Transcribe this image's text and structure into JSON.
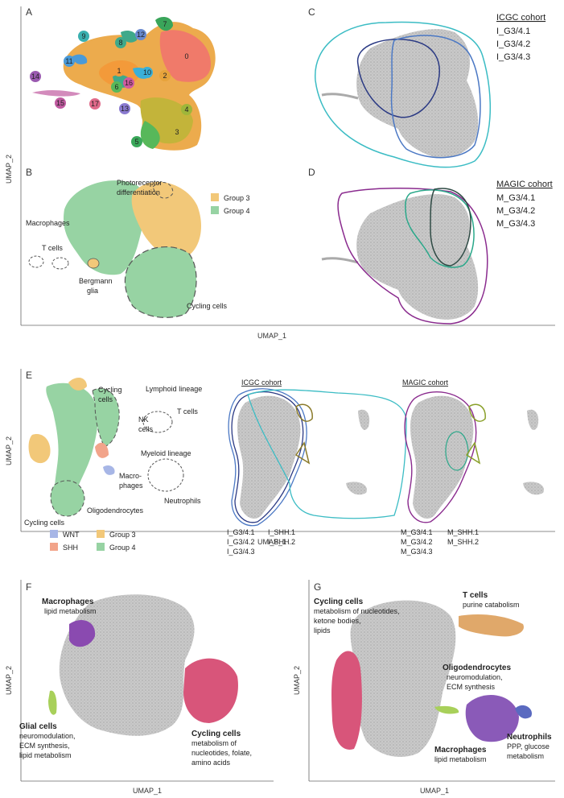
{
  "panel_labels": {
    "A": "A",
    "B": "B",
    "C": "C",
    "D": "D",
    "E": "E",
    "F": "F",
    "G": "G"
  },
  "axes": {
    "y": "UMAP_2",
    "x": "UMAP_1"
  },
  "panel_a": {
    "clusters": [
      "0",
      "1",
      "2",
      "3",
      "4",
      "5",
      "6",
      "7",
      "8",
      "9",
      "10",
      "11",
      "12",
      "13",
      "14",
      "15",
      "16",
      "17"
    ],
    "colors": {
      "0": "#f07a6a",
      "1": "#f39a3a",
      "2": "#e7a33b",
      "3": "#c3b43a",
      "4": "#9fb63a",
      "5": "#3aa85a",
      "6": "#57b85a",
      "7": "#3aa55a",
      "8": "#3fa98a",
      "9": "#3ab0b0",
      "10": "#3ab0d8",
      "11": "#4a9ad8",
      "12": "#6a8ad0",
      "13": "#8a7ad0",
      "14": "#9a5ab0",
      "15": "#c05aa0",
      "16": "#d05aa0",
      "17": "#e06a8a"
    }
  },
  "panel_b": {
    "legend": [
      {
        "label": "Group 3",
        "color": "#f2c879"
      },
      {
        "label": "Group 4",
        "color": "#97d3a3"
      }
    ],
    "annotations": [
      "Photoreceptor differentiation",
      "Macrophages",
      "T cells",
      "Bergmann glia",
      "Cycling cells"
    ]
  },
  "panel_c": {
    "title": "ICGC cohort",
    "legend": [
      {
        "label": "I_G3/4.1",
        "color": "#2b3a84"
      },
      {
        "label": "I_G3/4.2",
        "color": "#3bbcc4"
      },
      {
        "label": "I_G3/4.3",
        "color": "#4b78c4"
      }
    ]
  },
  "panel_d": {
    "title": "MAGIC cohort",
    "legend": [
      {
        "label": "M_G3/4.1",
        "color": "#8a2b8e"
      },
      {
        "label": "M_G3/4.2",
        "color": "#2aa88a"
      },
      {
        "label": "M_G3/4.3",
        "color": "#2e4a44"
      }
    ]
  },
  "panel_e": {
    "annotations": [
      "Cycling cells",
      "Lymphoid lineage",
      "T cells",
      "NK cells",
      "Myeloid lineage",
      "Macro-",
      "phages",
      "Neutrophils",
      "Oligodendrocytes",
      "Cycling cells"
    ],
    "legend": [
      {
        "label": "WNT",
        "color": "#a7b6e6"
      },
      {
        "label": "SHH",
        "color": "#f2a48a"
      },
      {
        "label": "Group 3",
        "color": "#f2c879"
      },
      {
        "label": "Group 4",
        "color": "#97d3a3"
      }
    ],
    "icgc_title": "ICGC cohort",
    "magic_title": "MAGIC cohort",
    "icgc_legend": [
      {
        "label": "I_G3/4.1",
        "color": "#2b3a84"
      },
      {
        "label": "I_G3/4.2",
        "color": "#3bbcc4"
      },
      {
        "label": "I_G3/4.3",
        "color": "#4b78c4"
      },
      {
        "label": "I_SHH.1",
        "color": "#8a7a2a"
      },
      {
        "label": "I_SHH.2",
        "color": "#b89a5a"
      }
    ],
    "magic_legend": [
      {
        "label": "M_G3/4.1",
        "color": "#8a2b8e"
      },
      {
        "label": "M_G3/4.2",
        "color": "#2aa88a"
      },
      {
        "label": "M_G3/4.3",
        "color": "#2e4a44"
      },
      {
        "label": "M_SHH.1",
        "color": "#8aa02a"
      },
      {
        "label": "M_SHH.2",
        "color": "#9a9a9a"
      }
    ]
  },
  "panel_f": {
    "macrophages": {
      "title": "Macrophages",
      "desc": "lipid metabolism",
      "color": "#7a3a9a"
    },
    "glial": {
      "title": "Glial cells",
      "desc1": "neuromodulation,",
      "desc2": "ECM synthesis,",
      "desc3": "lipid metabolism",
      "color": "#8ab83a"
    },
    "cycling": {
      "title": "Cycling cells",
      "desc1": "metabolism of",
      "desc2": "nucleotides, folate,",
      "desc3": "amino acids",
      "color": "#c02a5a"
    }
  },
  "panel_g": {
    "cycling": {
      "title": "Cycling cells",
      "desc1": "metabolism of nucleotides,",
      "desc2": "ketone bodies,",
      "desc3": "lipids",
      "color": "#c02a5a"
    },
    "tcells": {
      "title": "T cells",
      "desc": "purine catabolism",
      "color": "#e09a5a"
    },
    "oligo": {
      "title": "Oligodendrocytes",
      "desc1": "neuromodulation,",
      "desc2": "ECM synthesis",
      "color": "#8ab83a"
    },
    "macrophages": {
      "title": "Macrophages",
      "desc": "lipid metabolism",
      "color": "#7a3a9a"
    },
    "neutrophils": {
      "title": "Neutrophils",
      "desc1": "PPP, glucose",
      "desc2": "metabolism",
      "color": "#8a8ad8"
    }
  }
}
